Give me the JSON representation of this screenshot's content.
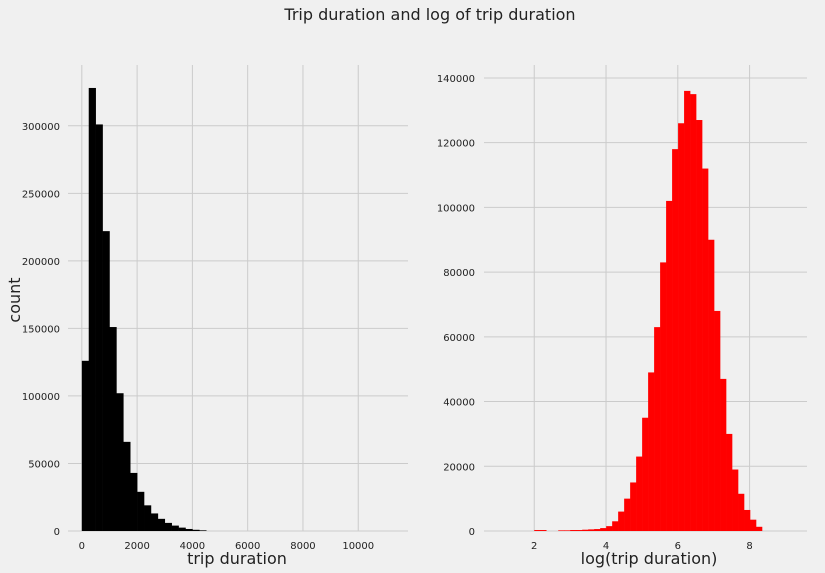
{
  "figure": {
    "title": "Trip duration and log of trip duration",
    "background": "#f0f0f0",
    "grid_color": "#cbcbcb"
  },
  "chart_data": [
    {
      "type": "bar",
      "subtype": "histogram",
      "title": "",
      "xlabel": "trip duration",
      "ylabel": "count",
      "color": "#000000",
      "xlim": [
        -500,
        11800
      ],
      "ylim": [
        0,
        345000
      ],
      "xticks": [
        0,
        2000,
        4000,
        6000,
        8000,
        10000
      ],
      "xtick_labels": [
        "0",
        "2000",
        "4000",
        "6000",
        "8000",
        "10000"
      ],
      "yticks": [
        0,
        50000,
        100000,
        150000,
        200000,
        250000,
        300000
      ],
      "ytick_labels": [
        "0",
        "50000",
        "100000",
        "150000",
        "200000",
        "250000",
        "300000"
      ],
      "grid": true,
      "bin_edges": [
        0,
        250,
        500,
        750,
        1000,
        1250,
        1500,
        1750,
        2000,
        2250,
        2500,
        2750,
        3000,
        3250,
        3500,
        3750,
        4000,
        4250,
        4500
      ],
      "values": [
        126000,
        328000,
        301000,
        222000,
        151000,
        102000,
        66000,
        43000,
        29000,
        19000,
        13000,
        9000,
        6000,
        4000,
        2500,
        1500,
        900,
        500
      ]
    },
    {
      "type": "bar",
      "subtype": "histogram",
      "title": "",
      "xlabel": "log(trip duration)",
      "ylabel": "",
      "color": "#ff0000",
      "xlim": [
        0.6,
        9.6
      ],
      "ylim": [
        0,
        144000
      ],
      "xticks": [
        2,
        4,
        6,
        8
      ],
      "xtick_labels": [
        "2",
        "4",
        "6",
        "8"
      ],
      "yticks": [
        0,
        20000,
        40000,
        60000,
        80000,
        100000,
        120000,
        140000
      ],
      "ytick_labels": [
        "0",
        "20000",
        "40000",
        "60000",
        "80000",
        "100000",
        "120000",
        "140000"
      ],
      "grid": true,
      "bin_start": 2.0,
      "bin_width": 0.167,
      "values": [
        300,
        300,
        0,
        0,
        200,
        200,
        300,
        300,
        400,
        500,
        600,
        900,
        1500,
        3000,
        6000,
        10000,
        15000,
        23000,
        35000,
        49000,
        63000,
        83000,
        102000,
        118000,
        126000,
        136000,
        135000,
        127000,
        112000,
        90000,
        68000,
        47000,
        30000,
        19000,
        11500,
        6500,
        3500,
        1300
      ]
    }
  ]
}
